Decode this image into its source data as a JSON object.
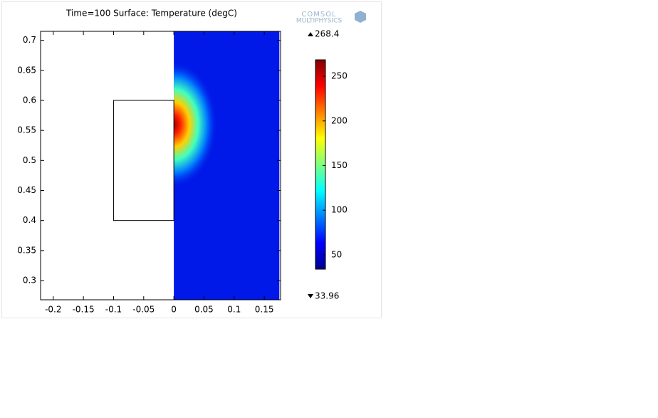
{
  "chart_data": {
    "type": "surface",
    "title": "Time=100  Surface: Temperature (degC)",
    "logo": [
      "COMSOL",
      "MULTIPHYSICS"
    ],
    "xlim": [
      -0.221,
      0.177
    ],
    "ylim": [
      0.268,
      0.715
    ],
    "xticks": [
      -0.2,
      -0.15,
      -0.1,
      -0.05,
      0,
      0.05,
      0.1,
      0.15
    ],
    "yticks": [
      0.3,
      0.35,
      0.4,
      0.45,
      0.5,
      0.55,
      0.6,
      0.65,
      0.7
    ],
    "field_region": {
      "x": [
        0,
        0.175
      ],
      "y": [
        0.268,
        0.715
      ]
    },
    "hotspot": {
      "x": 0,
      "y": 0.56
    },
    "block": {
      "x": [
        -0.1,
        0
      ],
      "y": [
        0.4,
        0.6
      ]
    },
    "colorbar": {
      "min": 33.96,
      "max": 268.4,
      "ticks": [
        50,
        100,
        150,
        200,
        250
      ]
    }
  }
}
